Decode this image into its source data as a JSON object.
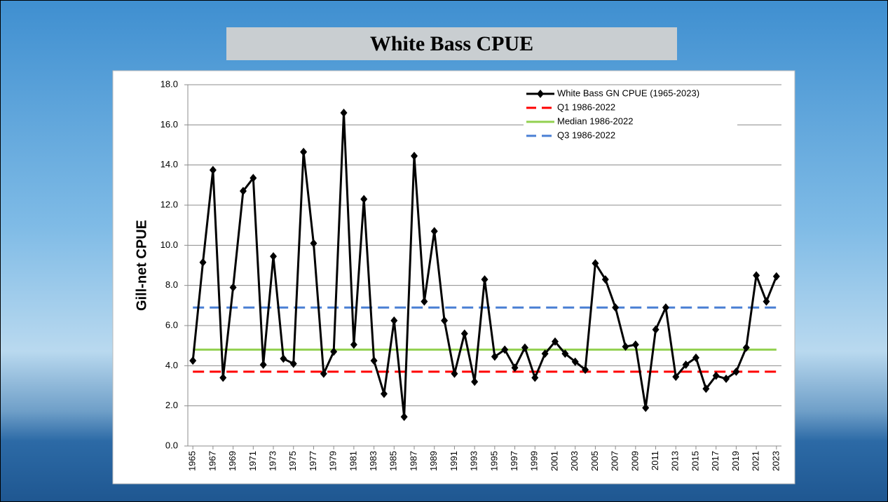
{
  "chart_data": {
    "type": "line",
    "title": "White Bass CPUE",
    "y_label": "Gill-net CPUE",
    "x": [
      1965,
      1966,
      1967,
      1968,
      1969,
      1970,
      1971,
      1972,
      1973,
      1974,
      1975,
      1976,
      1977,
      1978,
      1979,
      1980,
      1981,
      1982,
      1983,
      1984,
      1985,
      1986,
      1987,
      1988,
      1989,
      1990,
      1991,
      1992,
      1993,
      1994,
      1995,
      1996,
      1997,
      1998,
      1999,
      2000,
      2001,
      2002,
      2003,
      2004,
      2005,
      2006,
      2007,
      2008,
      2009,
      2010,
      2011,
      2012,
      2013,
      2014,
      2015,
      2016,
      2017,
      2018,
      2019,
      2020,
      2021,
      2022,
      2023
    ],
    "xlim": [
      1964.5,
      2023.5
    ],
    "xticks": [
      1965,
      1967,
      1969,
      1971,
      1973,
      1975,
      1977,
      1979,
      1981,
      1983,
      1985,
      1987,
      1989,
      1991,
      1993,
      1995,
      1997,
      1999,
      2001,
      2003,
      2005,
      2007,
      2009,
      2011,
      2013,
      2015,
      2017,
      2019,
      2021,
      2023
    ],
    "ylim": [
      0,
      18
    ],
    "yticks": [
      {
        "value": 0,
        "label": "0.0"
      },
      {
        "value": 2,
        "label": "2.0"
      },
      {
        "value": 4,
        "label": "4.0"
      },
      {
        "value": 6,
        "label": "6.0"
      },
      {
        "value": 8,
        "label": "8.0"
      },
      {
        "value": 10,
        "label": "10.0"
      },
      {
        "value": 12,
        "label": "12.0"
      },
      {
        "value": 14,
        "label": "14.0"
      },
      {
        "value": 16,
        "label": "16.0"
      },
      {
        "value": 18,
        "label": "18.0"
      }
    ],
    "grid": true,
    "legend": "upper right",
    "series": [
      {
        "name": "White Bass GN CPUE (1965-2023)",
        "color": "#000000",
        "values": [
          4.25,
          9.15,
          13.75,
          3.4,
          7.9,
          12.7,
          13.35,
          4.05,
          9.45,
          4.35,
          4.1,
          14.65,
          10.1,
          3.6,
          4.7,
          16.6,
          5.05,
          12.3,
          4.25,
          2.6,
          6.25,
          1.45,
          14.45,
          7.2,
          10.7,
          6.25,
          3.6,
          5.6,
          3.2,
          8.3,
          4.45,
          4.8,
          3.9,
          4.9,
          3.4,
          4.6,
          5.2,
          4.6,
          4.2,
          3.8,
          9.1,
          8.3,
          6.9,
          4.95,
          5.05,
          1.9,
          5.8,
          6.9,
          3.45,
          4.05,
          4.4,
          2.85,
          3.5,
          3.35,
          3.7,
          4.9,
          8.5,
          7.2,
          8.45
        ]
      }
    ],
    "reference_lines": [
      {
        "name": "Q1 1986-2022",
        "value": 3.7,
        "color": "#ff0000",
        "style": "dashed"
      },
      {
        "name": "Median 1986-2022",
        "value": 4.8,
        "color": "#92d050",
        "style": "solid"
      },
      {
        "name": "Q3 1986-2022",
        "value": 6.9,
        "color": "#4a7fd4",
        "style": "dashed"
      }
    ]
  }
}
